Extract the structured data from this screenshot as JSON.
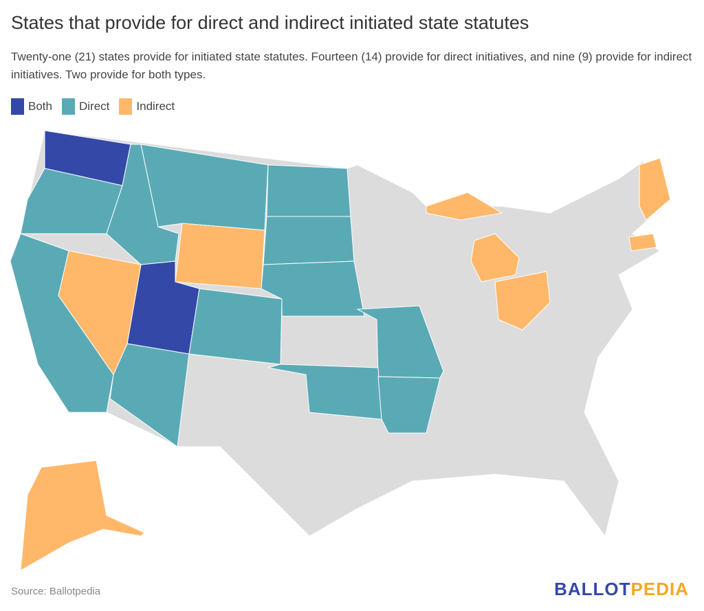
{
  "title": "States that provide for direct and indirect initiated state statutes",
  "subtitle": "Twenty-one (21) states provide for initiated state statutes. Fourteen (14) provide for direct initiatives, and nine (9) provide for indirect initiatives. Two provide for both types.",
  "legend": [
    {
      "label": "Both",
      "color": "#3448a8"
    },
    {
      "label": "Direct",
      "color": "#5aaab6"
    },
    {
      "label": "Indirect",
      "color": "#ffb869"
    }
  ],
  "other_color": "#dcdcdc",
  "states": {
    "Both": [
      "Washington",
      "Utah"
    ],
    "Direct": [
      "Oregon",
      "California",
      "Idaho",
      "Montana",
      "Colorado",
      "Arizona",
      "North Dakota",
      "South Dakota",
      "Nebraska",
      "Missouri",
      "Oklahoma",
      "Arkansas"
    ],
    "Indirect": [
      "Nevada",
      "Wyoming",
      "Michigan",
      "Ohio",
      "Maine",
      "Massachusetts",
      "Alaska"
    ]
  },
  "source": "Source: Ballotpedia",
  "logo": {
    "part1": "BALLOT",
    "part2": "PEDIA"
  }
}
